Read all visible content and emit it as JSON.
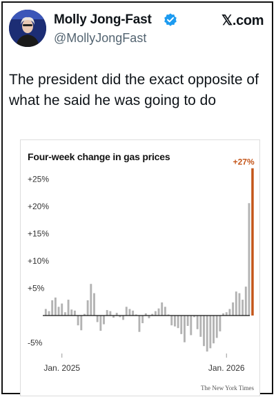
{
  "tweet": {
    "author_name": "Molly Jong-Fast",
    "handle": "@MollyJongFast",
    "platform": "𝕏.com",
    "text": "The president did the exact opposite of what he said he was going to do",
    "verified_badge_icon": "verified-badge-icon",
    "colors": {
      "badge": "#1d9bf0",
      "handle": "#536471"
    }
  },
  "chart_data": {
    "type": "bar",
    "title": "Four-week change in gas prices",
    "credit": "The New York Times",
    "y_ticks": [
      {
        "value": 25,
        "label": "+25%"
      },
      {
        "value": 20,
        "label": "+20%"
      },
      {
        "value": 15,
        "label": "+15%"
      },
      {
        "value": 10,
        "label": "+10%"
      },
      {
        "value": 5,
        "label": "+5%"
      },
      {
        "value": -5,
        "label": "-5%"
      }
    ],
    "x_ticks": [
      {
        "index": 5,
        "label": "Jan. 2025"
      },
      {
        "index": 56,
        "label": "Jan. 2026"
      }
    ],
    "ylim": [
      -8,
      28
    ],
    "values": [
      1.2,
      0.8,
      2.8,
      3.3,
      1.6,
      2.2,
      0.6,
      2.9,
      1.1,
      0.9,
      -1.8,
      -2.7,
      0.3,
      2.8,
      5.8,
      4.1,
      -1.2,
      -2.8,
      -1.6,
      1.0,
      0.8,
      -0.4,
      0.5,
      -0.3,
      -0.8,
      1.6,
      1.2,
      0.9,
      0.2,
      -3.0,
      -1.4,
      0.4,
      -0.5,
      0.3,
      0.8,
      1.3,
      2.4,
      1.6,
      0.2,
      -1.8,
      -2.0,
      -2.3,
      -3.4,
      -4.9,
      -1.9,
      -3.6,
      -0.3,
      -2.5,
      -3.9,
      -5.6,
      -6.6,
      -6.0,
      -5.1,
      -4.1,
      -2.9,
      0.4,
      0.6,
      1.2,
      2.4,
      4.4,
      4.1,
      2.9,
      5.3,
      20.6,
      27.0
    ],
    "highlight_index": 64,
    "peak_label": "+27%",
    "colors": {
      "bar": "#b3b3b3",
      "highlight": "#c4561a",
      "baseline": "#111111"
    }
  }
}
